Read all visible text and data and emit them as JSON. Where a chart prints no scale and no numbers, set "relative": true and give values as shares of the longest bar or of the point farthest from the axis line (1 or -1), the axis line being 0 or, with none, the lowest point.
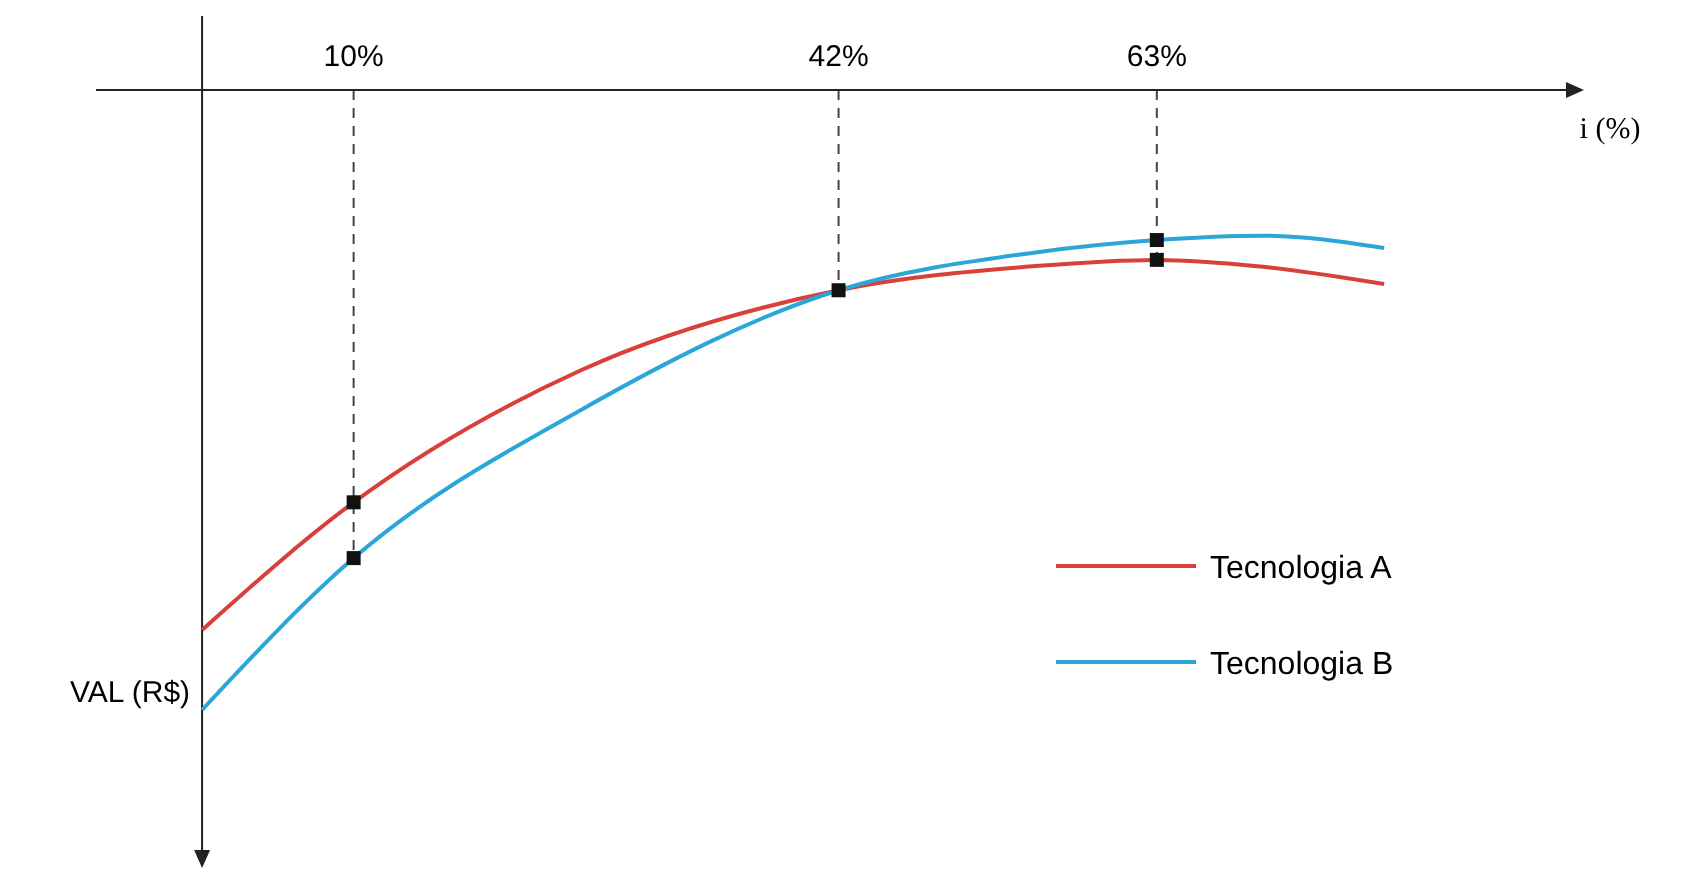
{
  "chart_data": {
    "type": "line",
    "relative": true,
    "xlabel": "i (%)",
    "ylabel": "VAL (R$)",
    "xlim": [
      -7,
      90
    ],
    "xticks": [
      {
        "value": 10,
        "label": "10%"
      },
      {
        "value": 42,
        "label": "42%"
      },
      {
        "value": 63,
        "label": "63%"
      }
    ],
    "series": [
      {
        "name": "Tecnologia A",
        "color": "#d9403a",
        "x": [
          0,
          10,
          25,
          42,
          55,
          63,
          70,
          78
        ],
        "values": [
          -0.871,
          -0.665,
          -0.452,
          -0.323,
          -0.284,
          -0.274,
          -0.285,
          -0.313
        ]
      },
      {
        "name": "Tecnologia B",
        "color": "#2aa7d8",
        "x": [
          0,
          10,
          25,
          42,
          55,
          63,
          70,
          78
        ],
        "values": [
          -1,
          -0.755,
          -0.516,
          -0.323,
          -0.262,
          -0.242,
          -0.235,
          -0.255
        ]
      },
      {
        "type": "scatter",
        "color": "#111111",
        "marker": "square",
        "x": [
          10,
          10,
          42,
          63,
          63
        ],
        "values": [
          -0.665,
          -0.755,
          -0.323,
          -0.274,
          -0.242
        ]
      }
    ],
    "ref_lines": [
      {
        "axis": "x",
        "value": 10,
        "line_style": "dashed"
      },
      {
        "axis": "x",
        "value": 42,
        "line_style": "dashed"
      },
      {
        "axis": "x",
        "value": 63,
        "line_style": "dashed"
      }
    ],
    "legend": "bottom right",
    "grid": false
  }
}
